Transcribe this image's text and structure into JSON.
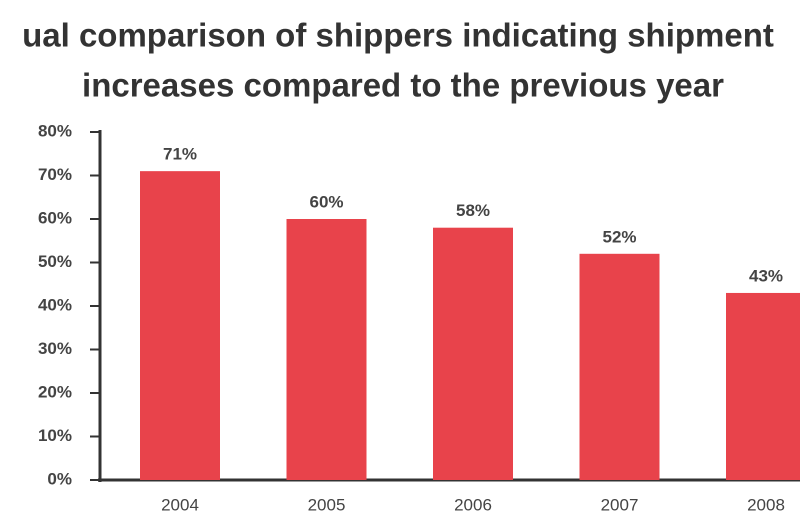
{
  "chart_data": {
    "type": "bar",
    "title_lines": [
      "ual comparison of shippers indicating shipment",
      "increases compared to the previous year"
    ],
    "categories": [
      "2004",
      "2005",
      "2006",
      "2007",
      "2008"
    ],
    "values": [
      71,
      60,
      58,
      52,
      43
    ],
    "value_labels": [
      "71%",
      "60%",
      "58%",
      "52%",
      "43%"
    ],
    "color": "#e8434b",
    "ylim": [
      0,
      80
    ],
    "yticks": [
      {
        "value": 0,
        "label": "0%"
      },
      {
        "value": 10,
        "label": "10%"
      },
      {
        "value": 20,
        "label": "20%"
      },
      {
        "value": 30,
        "label": "30%"
      },
      {
        "value": 40,
        "label": "40%"
      },
      {
        "value": 50,
        "label": "50%"
      },
      {
        "value": 60,
        "label": "60%"
      },
      {
        "value": 70,
        "label": "70%"
      },
      {
        "value": 80,
        "label": "80%"
      }
    ],
    "grid": false
  }
}
